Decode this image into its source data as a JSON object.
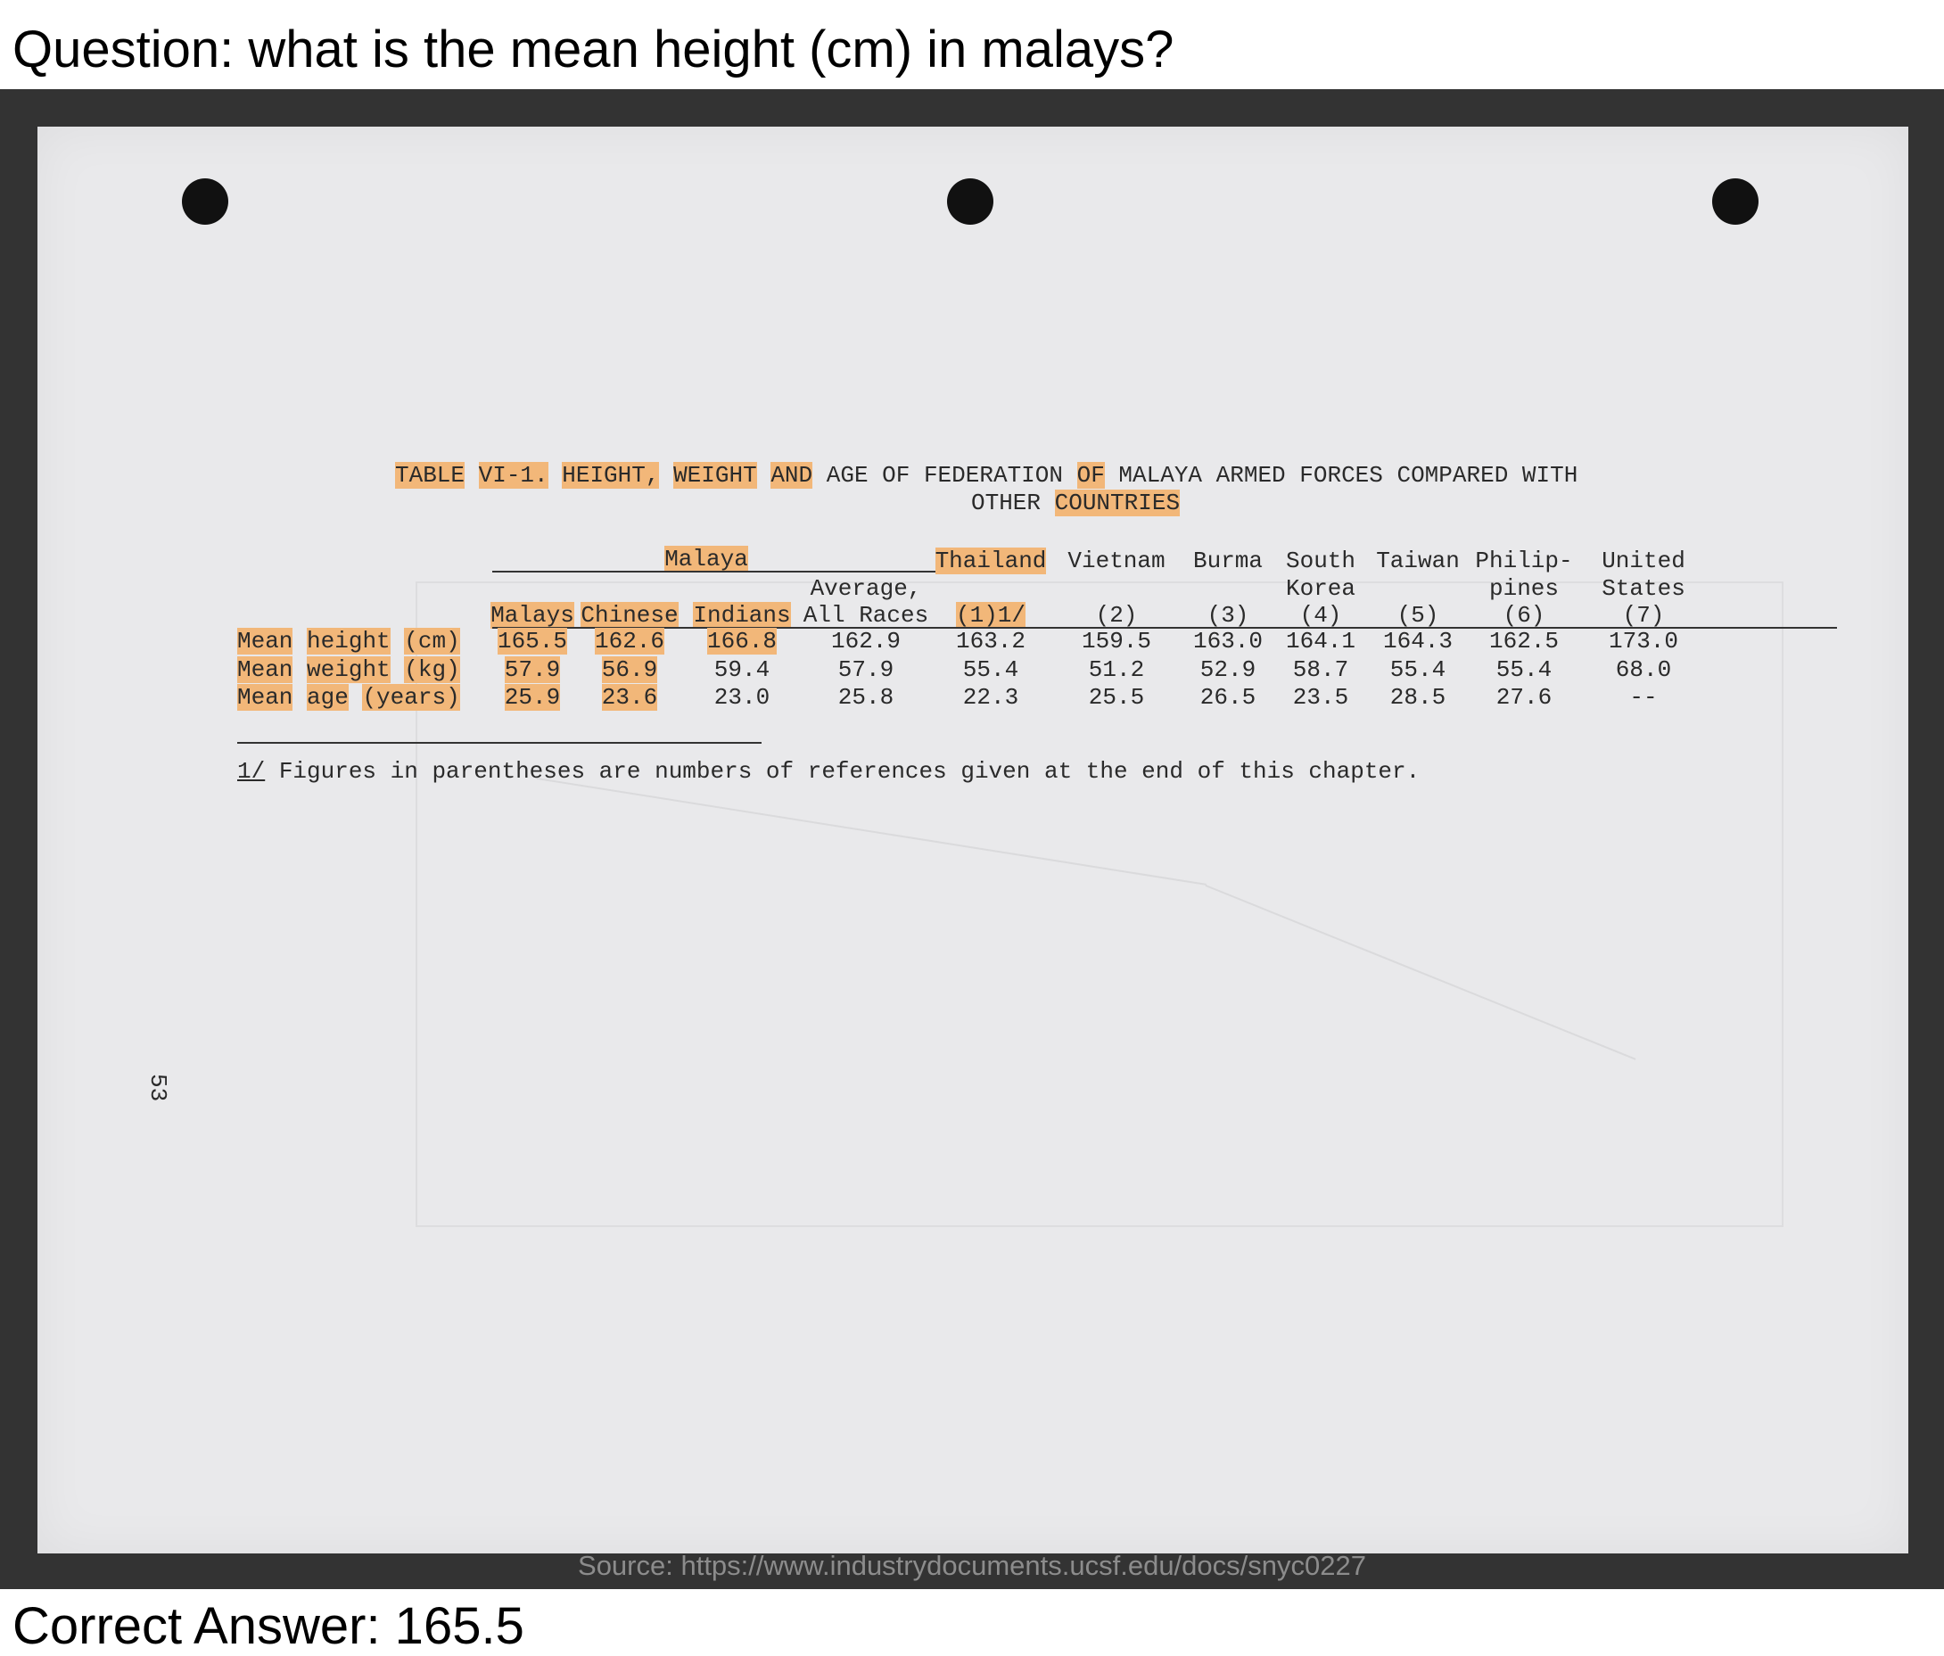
{
  "question": "Question: what is the mean height (cm) in malays?",
  "answer": "Correct Answer: 165.5",
  "source": "Source: https://www.industrydocuments.ucsf.edu/docs/snyc0227",
  "page_number": "53",
  "table": {
    "title_line1": [
      {
        "text": "TABLE",
        "hl": true
      },
      {
        "text": "VI-1.",
        "hl": true
      },
      {
        "text": " ",
        "hl": false
      },
      {
        "text": "HEIGHT,",
        "hl": true
      },
      {
        "text": "WEIGHT",
        "hl": true
      },
      {
        "text": "AND",
        "hl": true
      },
      {
        "text": "AGE OF FEDERATION",
        "hl": false
      },
      {
        "text": "OF",
        "hl": true
      },
      {
        "text": "MALAYA ARMED FORCES COMPARED WITH",
        "hl": false
      }
    ],
    "title_line2": [
      {
        "text": "OTHER",
        "hl": false
      },
      {
        "text": "COUNTRIES",
        "hl": true
      }
    ],
    "group_label": "Malaya",
    "columns": [
      {
        "l1": "",
        "l2": "",
        "l3": "Malays",
        "hl": true
      },
      {
        "l1": "",
        "l2": "",
        "l3": "Chinese",
        "hl": true
      },
      {
        "l1": "",
        "l2": "",
        "l3": "Indians",
        "hl": true
      },
      {
        "l1": "",
        "l2": "Average,",
        "l3": "All Races",
        "hl": false
      },
      {
        "l1": "Thailand",
        "l2": "",
        "l3": "(1)1/",
        "hl": true
      },
      {
        "l1": "Vietnam",
        "l2": "",
        "l3": "(2)",
        "hl": false
      },
      {
        "l1": "Burma",
        "l2": "",
        "l3": "(3)",
        "hl": false
      },
      {
        "l1": "South",
        "l2": "Korea",
        "l3": "(4)",
        "hl": false
      },
      {
        "l1": "Taiwan",
        "l2": "",
        "l3": "(5)",
        "hl": false
      },
      {
        "l1": "Philip-",
        "l2": "pines",
        "l3": "(6)",
        "hl": false
      },
      {
        "l1": "United",
        "l2": "States",
        "l3": "(7)",
        "hl": false
      }
    ],
    "rows": [
      {
        "label": [
          "Mean",
          "height",
          "(cm)"
        ],
        "values": [
          "165.5",
          "162.6",
          "166.8",
          "162.9",
          "163.2",
          "159.5",
          "163.0",
          "164.1",
          "164.3",
          "162.5",
          "173.0"
        ],
        "hl": [
          true,
          true,
          true,
          false,
          false,
          false,
          false,
          false,
          false,
          false,
          false
        ]
      },
      {
        "label": [
          "Mean",
          "weight",
          "(kg)"
        ],
        "values": [
          "57.9",
          "56.9",
          "59.4",
          "57.9",
          "55.4",
          "51.2",
          "52.9",
          "58.7",
          "55.4",
          "55.4",
          "68.0"
        ],
        "hl": [
          true,
          true,
          false,
          false,
          false,
          false,
          false,
          false,
          false,
          false,
          false
        ]
      },
      {
        "label": [
          "Mean",
          "age",
          "(years)"
        ],
        "values": [
          "25.9",
          "23.6",
          "23.0",
          "25.8",
          "22.3",
          "25.5",
          "26.5",
          "23.5",
          "28.5",
          "27.6",
          "--"
        ],
        "hl": [
          true,
          true,
          false,
          false,
          false,
          false,
          false,
          false,
          false,
          false,
          false
        ]
      }
    ],
    "footnote_mark": "1/",
    "footnote_text": " Figures in parentheses are numbers of references given at the end of this chapter."
  }
}
